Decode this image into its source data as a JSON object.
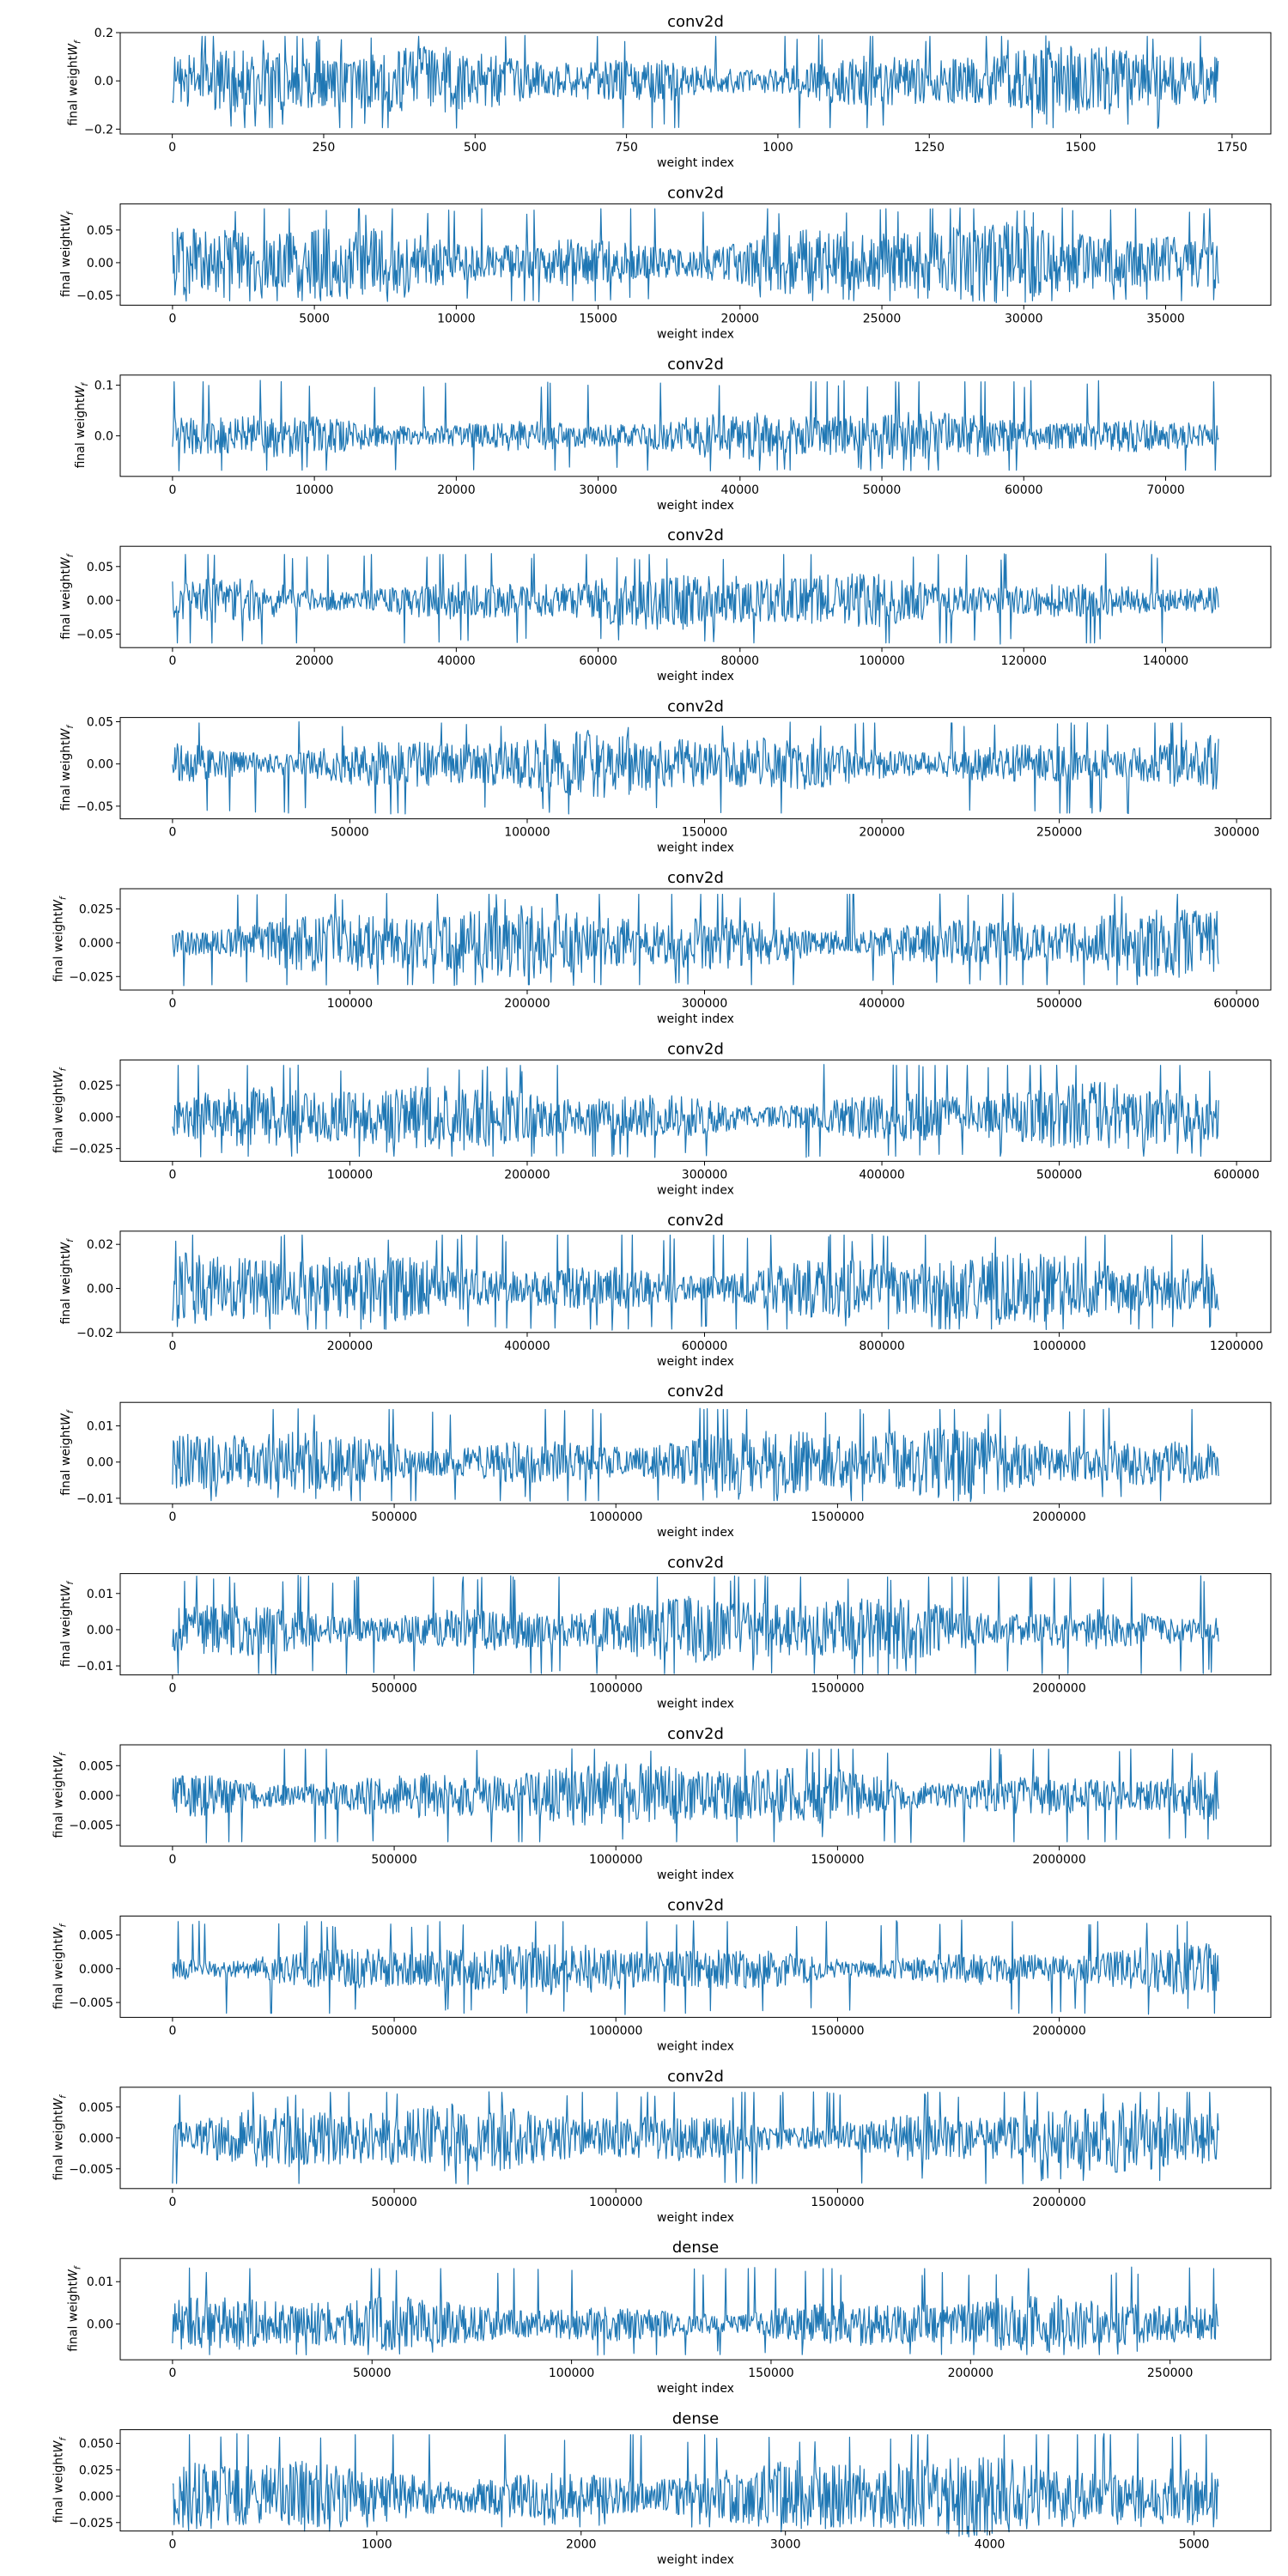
{
  "series_color": "#1f77b4",
  "chart_data": [
    {
      "type": "line",
      "title": "conv2d",
      "xlabel": "weight index",
      "ylabel": "final weight",
      "ylabel_sub": "f",
      "n": 1728,
      "xlim": [
        -86,
        1814
      ],
      "ylim": [
        -0.22,
        0.2
      ],
      "xticks": [
        0,
        250,
        500,
        750,
        1000,
        1250,
        1500,
        1750
      ],
      "yticks": [
        -0.2,
        0.0,
        0.2
      ],
      "ytick_labels": [
        "−0.2",
        "0.0",
        "0.2"
      ],
      "envelope": {
        "max": 0.19,
        "min": -0.2,
        "typical": 0.13
      }
    },
    {
      "type": "line",
      "title": "conv2d",
      "xlabel": "weight index",
      "ylabel": "final weight",
      "ylabel_sub": "f",
      "n": 36864,
      "xlim": [
        -1843,
        38707
      ],
      "ylim": [
        -0.065,
        0.09
      ],
      "xticks": [
        0,
        5000,
        10000,
        15000,
        20000,
        25000,
        30000,
        35000
      ],
      "yticks": [
        -0.05,
        0.0,
        0.05
      ],
      "ytick_labels": [
        "−0.05",
        "0.00",
        "0.05"
      ],
      "envelope": {
        "max": 0.085,
        "min": -0.06,
        "typical": 0.055
      }
    },
    {
      "type": "line",
      "title": "conv2d",
      "xlabel": "weight index",
      "ylabel": "final weight",
      "ylabel_sub": "f",
      "n": 73728,
      "xlim": [
        -3686,
        77414
      ],
      "ylim": [
        -0.08,
        0.12
      ],
      "xticks": [
        0,
        10000,
        20000,
        30000,
        40000,
        50000,
        60000,
        70000
      ],
      "yticks": [
        0.0,
        0.1
      ],
      "ytick_labels": [
        "0.0",
        "0.1"
      ],
      "envelope": {
        "max": 0.11,
        "min": -0.07,
        "typical": 0.045
      }
    },
    {
      "type": "line",
      "title": "conv2d",
      "xlabel": "weight index",
      "ylabel": "final weight",
      "ylabel_sub": "f",
      "n": 147456,
      "xlim": [
        -7373,
        154829
      ],
      "ylim": [
        -0.07,
        0.08
      ],
      "xticks": [
        0,
        20000,
        40000,
        60000,
        80000,
        100000,
        120000,
        140000
      ],
      "yticks": [
        -0.05,
        0.0,
        0.05
      ],
      "ytick_labels": [
        "−0.05",
        "0.00",
        "0.05"
      ],
      "envelope": {
        "max": 0.07,
        "min": -0.065,
        "typical": 0.04
      }
    },
    {
      "type": "line",
      "title": "conv2d",
      "xlabel": "weight index",
      "ylabel": "final weight",
      "ylabel_sub": "f",
      "n": 294912,
      "xlim": [
        -14746,
        309658
      ],
      "ylim": [
        -0.065,
        0.055
      ],
      "xticks": [
        0,
        50000,
        100000,
        150000,
        200000,
        250000,
        300000
      ],
      "yticks": [
        -0.05,
        0.0,
        0.05
      ],
      "ytick_labels": [
        "−0.05",
        "0.00",
        "0.05"
      ],
      "envelope": {
        "max": 0.05,
        "min": -0.06,
        "typical": 0.035
      }
    },
    {
      "type": "line",
      "title": "conv2d",
      "xlabel": "weight index",
      "ylabel": "final weight",
      "ylabel_sub": "f",
      "n": 589824,
      "xlim": [
        -29491,
        619315
      ],
      "ylim": [
        -0.035,
        0.04
      ],
      "xticks": [
        0,
        100000,
        200000,
        300000,
        400000,
        500000,
        600000
      ],
      "yticks": [
        -0.025,
        0.0,
        0.025
      ],
      "ytick_labels": [
        "−0.025",
        "0.000",
        "0.025"
      ],
      "envelope": {
        "max": 0.037,
        "min": -0.032,
        "typical": 0.024
      }
    },
    {
      "type": "line",
      "title": "conv2d",
      "xlabel": "weight index",
      "ylabel": "final weight",
      "ylabel_sub": "f",
      "n": 589824,
      "xlim": [
        -29491,
        619315
      ],
      "ylim": [
        -0.035,
        0.045
      ],
      "xticks": [
        0,
        100000,
        200000,
        300000,
        400000,
        500000,
        600000
      ],
      "yticks": [
        -0.025,
        0.0,
        0.025
      ],
      "ytick_labels": [
        "−0.025",
        "0.000",
        "0.025"
      ],
      "envelope": {
        "max": 0.042,
        "min": -0.032,
        "typical": 0.024
      }
    },
    {
      "type": "line",
      "title": "conv2d",
      "xlabel": "weight index",
      "ylabel": "final weight",
      "ylabel_sub": "f",
      "n": 1179648,
      "xlim": [
        -58982,
        1238630
      ],
      "ylim": [
        -0.02,
        0.026
      ],
      "xticks": [
        0,
        200000,
        400000,
        600000,
        800000,
        1000000,
        1200000
      ],
      "yticks": [
        -0.02,
        0.0,
        0.02
      ],
      "ytick_labels": [
        "−0.02",
        "0.00",
        "0.02"
      ],
      "envelope": {
        "max": 0.025,
        "min": -0.019,
        "typical": 0.015
      }
    },
    {
      "type": "line",
      "title": "conv2d",
      "xlabel": "weight index",
      "ylabel": "final weight",
      "ylabel_sub": "f",
      "n": 2359296,
      "xlim": [
        -117965,
        2477261
      ],
      "ylim": [
        -0.0115,
        0.0165
      ],
      "xticks": [
        0,
        500000,
        1000000,
        1500000,
        2000000
      ],
      "yticks": [
        -0.01,
        0.0,
        0.01
      ],
      "ytick_labels": [
        "−0.01",
        "0.00",
        "0.01"
      ],
      "envelope": {
        "max": 0.015,
        "min": -0.011,
        "typical": 0.009
      }
    },
    {
      "type": "line",
      "title": "conv2d",
      "xlabel": "weight index",
      "ylabel": "final weight",
      "ylabel_sub": "f",
      "n": 2359296,
      "xlim": [
        -117965,
        2477261
      ],
      "ylim": [
        -0.0125,
        0.0155
      ],
      "xticks": [
        0,
        500000,
        1000000,
        1500000,
        2000000
      ],
      "yticks": [
        -0.01,
        0.0,
        0.01
      ],
      "ytick_labels": [
        "−0.01",
        "0.00",
        "0.01"
      ],
      "envelope": {
        "max": 0.015,
        "min": -0.0125,
        "typical": 0.0085
      }
    },
    {
      "type": "line",
      "title": "conv2d",
      "xlabel": "weight index",
      "ylabel": "final weight",
      "ylabel_sub": "f",
      "n": 2359296,
      "xlim": [
        -117965,
        2477261
      ],
      "ylim": [
        -0.0085,
        0.0085
      ],
      "xticks": [
        0,
        500000,
        1000000,
        1500000,
        2000000
      ],
      "yticks": [
        -0.005,
        0.0,
        0.005
      ],
      "ytick_labels": [
        "−0.005",
        "0.000",
        "0.005"
      ],
      "envelope": {
        "max": 0.008,
        "min": -0.008,
        "typical": 0.005
      }
    },
    {
      "type": "line",
      "title": "conv2d",
      "xlabel": "weight index",
      "ylabel": "final weight",
      "ylabel_sub": "f",
      "n": 2359296,
      "xlim": [
        -117965,
        2477261
      ],
      "ylim": [
        -0.0072,
        0.0078
      ],
      "xticks": [
        0,
        500000,
        1000000,
        1500000,
        2000000
      ],
      "yticks": [
        -0.005,
        0.0,
        0.005
      ],
      "ytick_labels": [
        "−0.005",
        "0.000",
        "0.005"
      ],
      "envelope": {
        "max": 0.0072,
        "min": -0.0068,
        "typical": 0.0035
      }
    },
    {
      "type": "line",
      "title": "conv2d",
      "xlabel": "weight index",
      "ylabel": "final weight",
      "ylabel_sub": "f",
      "n": 2359296,
      "xlim": [
        -117965,
        2477261
      ],
      "ylim": [
        -0.0082,
        0.0082
      ],
      "xticks": [
        0,
        500000,
        1000000,
        1500000,
        2000000
      ],
      "yticks": [
        -0.005,
        0.0,
        0.005
      ],
      "ytick_labels": [
        "−0.005",
        "0.000",
        "0.005"
      ],
      "envelope": {
        "max": 0.0076,
        "min": -0.0076,
        "typical": 0.005
      }
    },
    {
      "type": "line",
      "title": "dense",
      "xlabel": "weight index",
      "ylabel": "final weight",
      "ylabel_sub": "f",
      "n": 262144,
      "xlim": [
        -13107,
        275251
      ],
      "ylim": [
        -0.0085,
        0.0155
      ],
      "xticks": [
        0,
        50000,
        100000,
        150000,
        200000,
        250000
      ],
      "yticks": [
        0.0,
        0.01
      ],
      "ytick_labels": [
        "0.00",
        "0.01"
      ],
      "envelope": {
        "max": 0.0135,
        "min": -0.0075,
        "typical": 0.006
      }
    },
    {
      "type": "line",
      "title": "dense",
      "xlabel": "weight index",
      "ylabel": "final weight",
      "ylabel_sub": "f",
      "n": 5120,
      "xlim": [
        -256,
        5376
      ],
      "ylim": [
        -0.033,
        0.063
      ],
      "xticks": [
        0,
        1000,
        2000,
        3000,
        4000,
        5000
      ],
      "yticks": [
        -0.025,
        0.0,
        0.025,
        0.05
      ],
      "ytick_labels": [
        "−0.025",
        "0.000",
        "0.025",
        "0.050"
      ],
      "envelope": {
        "max": 0.06,
        "min": -0.03,
        "typical": 0.035
      }
    }
  ]
}
